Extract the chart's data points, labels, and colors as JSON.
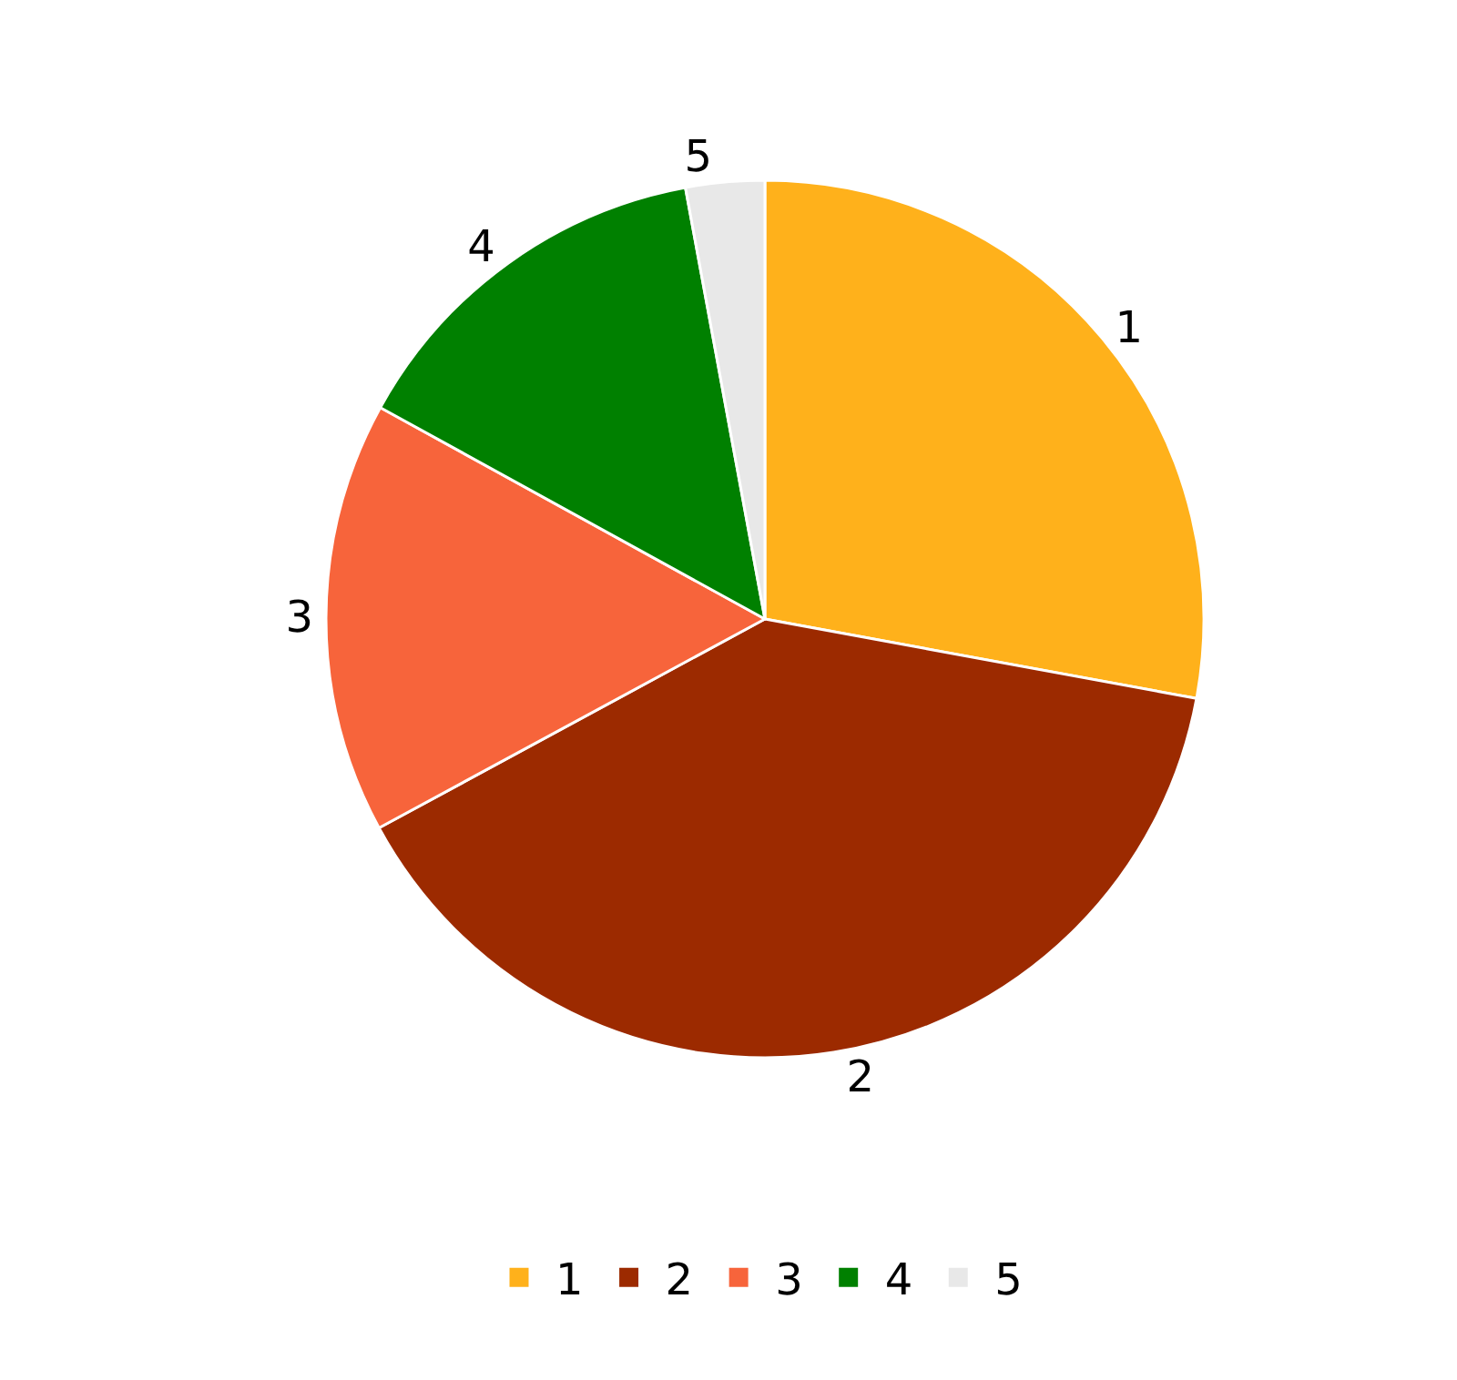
{
  "chart_data": {
    "type": "pie",
    "categories": [
      "1",
      "2",
      "3",
      "4",
      "5"
    ],
    "values": [
      27.9,
      39.2,
      15.9,
      14.1,
      2.9
    ],
    "colors": [
      "#ffb11b",
      "#9c2a00",
      "#f7643b",
      "#008000",
      "#e8e8e8"
    ],
    "legend": "bottom"
  }
}
